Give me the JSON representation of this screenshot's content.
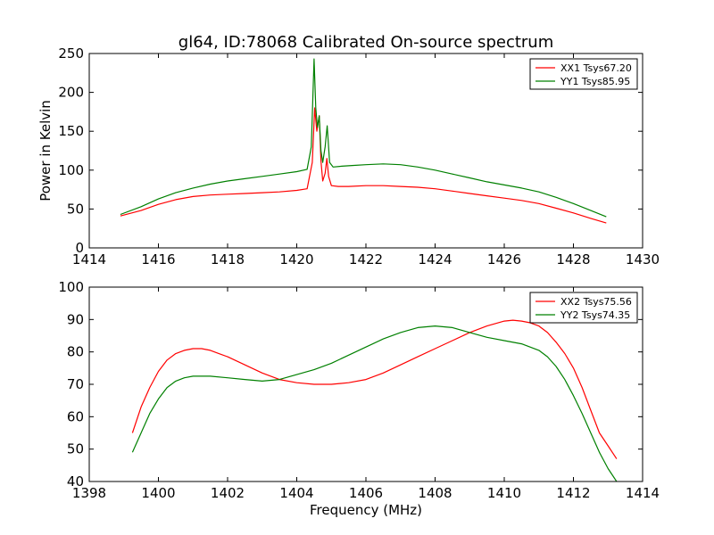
{
  "chart_data": [
    {
      "type": "line",
      "title": "gl64, ID:78068 Calibrated On-source spectrum",
      "xlabel": "",
      "ylabel": "Power in Kelvin",
      "xlim": [
        1414,
        1430
      ],
      "ylim": [
        0,
        250
      ],
      "xticks": [
        1414,
        1416,
        1418,
        1420,
        1422,
        1424,
        1426,
        1428,
        1430
      ],
      "yticks": [
        0,
        50,
        100,
        150,
        200,
        250
      ],
      "legend": "top-right",
      "grid": false,
      "series": [
        {
          "name": "XX1 Tsys67.20",
          "color": "#ff0000",
          "x": [
            1414.9,
            1415.5,
            1416.0,
            1416.5,
            1417.0,
            1417.5,
            1418.0,
            1418.5,
            1419.0,
            1419.5,
            1420.0,
            1420.3,
            1420.45,
            1420.52,
            1420.58,
            1420.65,
            1420.7,
            1420.75,
            1420.82,
            1420.87,
            1420.92,
            1421.0,
            1421.2,
            1421.5,
            1422.0,
            1422.5,
            1423.0,
            1423.5,
            1424.0,
            1424.5,
            1425.0,
            1425.5,
            1426.0,
            1426.5,
            1427.0,
            1427.5,
            1428.0,
            1428.5,
            1428.95
          ],
          "y": [
            41,
            48,
            56,
            62,
            66,
            68,
            69,
            70,
            71,
            72,
            74,
            76,
            110,
            180,
            150,
            170,
            112,
            86,
            96,
            115,
            92,
            80,
            79,
            79,
            80,
            80,
            79,
            78,
            76,
            73,
            70,
            67,
            64,
            61,
            57,
            51,
            45,
            38,
            32
          ]
        },
        {
          "name": "YY1 Tsys85.95",
          "color": "#008000",
          "x": [
            1414.9,
            1415.5,
            1416.0,
            1416.5,
            1417.0,
            1417.5,
            1418.0,
            1418.5,
            1419.0,
            1419.5,
            1420.0,
            1420.3,
            1420.42,
            1420.5,
            1420.55,
            1420.6,
            1420.65,
            1420.7,
            1420.75,
            1420.82,
            1420.88,
            1420.95,
            1421.05,
            1421.3,
            1421.6,
            1422.0,
            1422.5,
            1423.0,
            1423.5,
            1424.0,
            1424.5,
            1425.0,
            1425.5,
            1426.0,
            1426.5,
            1427.0,
            1427.5,
            1428.0,
            1428.5,
            1428.95
          ],
          "y": [
            43,
            53,
            63,
            71,
            77,
            82,
            86,
            89,
            92,
            95,
            98,
            101,
            130,
            243,
            180,
            155,
            170,
            125,
            110,
            130,
            157,
            110,
            104,
            105,
            106,
            107,
            108,
            107,
            104,
            100,
            95,
            90,
            85,
            81,
            77,
            72,
            65,
            57,
            48,
            40
          ]
        }
      ]
    },
    {
      "type": "line",
      "title": "",
      "xlabel": "Frequency (MHz)",
      "ylabel": "",
      "xlim": [
        1398,
        1414
      ],
      "ylim": [
        40,
        100
      ],
      "xticks": [
        1398,
        1400,
        1402,
        1404,
        1406,
        1408,
        1410,
        1412,
        1414
      ],
      "yticks": [
        40,
        50,
        60,
        70,
        80,
        90,
        100
      ],
      "legend": "top-right",
      "grid": false,
      "series": [
        {
          "name": "XX2 Tsys75.56",
          "color": "#ff0000",
          "x": [
            1399.25,
            1399.5,
            1399.75,
            1400.0,
            1400.25,
            1400.5,
            1400.75,
            1401.0,
            1401.25,
            1401.5,
            1401.75,
            1402.0,
            1402.5,
            1403.0,
            1403.5,
            1404.0,
            1404.5,
            1405.0,
            1405.5,
            1406.0,
            1406.5,
            1407.0,
            1407.5,
            1408.0,
            1408.5,
            1409.0,
            1409.5,
            1410.0,
            1410.25,
            1410.5,
            1410.75,
            1411.0,
            1411.25,
            1411.5,
            1411.75,
            1412.0,
            1412.25,
            1412.5,
            1412.75,
            1413.0,
            1413.25
          ],
          "y": [
            55,
            63,
            69,
            74,
            77.5,
            79.5,
            80.5,
            81,
            81,
            80.5,
            79.5,
            78.5,
            76,
            73.5,
            71.5,
            70.5,
            70,
            70,
            70.5,
            71.5,
            73.5,
            76,
            78.5,
            81,
            83.5,
            86,
            88,
            89.5,
            89.8,
            89.5,
            89,
            88,
            86,
            83,
            79.5,
            75,
            69,
            62,
            55,
            51,
            47
          ]
        },
        {
          "name": "YY2 Tsys74.35",
          "color": "#008000",
          "x": [
            1399.25,
            1399.5,
            1399.75,
            1400.0,
            1400.25,
            1400.5,
            1400.75,
            1401.0,
            1401.25,
            1401.5,
            1402.0,
            1402.5,
            1403.0,
            1403.5,
            1404.0,
            1404.5,
            1405.0,
            1405.5,
            1406.0,
            1406.5,
            1407.0,
            1407.5,
            1408.0,
            1408.5,
            1409.0,
            1409.5,
            1410.0,
            1410.5,
            1411.0,
            1411.25,
            1411.5,
            1411.75,
            1412.0,
            1412.25,
            1412.5,
            1412.75,
            1413.0,
            1413.25
          ],
          "y": [
            49,
            55,
            61,
            65.5,
            69,
            71,
            72,
            72.5,
            72.5,
            72.5,
            72,
            71.5,
            71,
            71.5,
            73,
            74.5,
            76.5,
            79,
            81.5,
            84,
            86,
            87.5,
            88,
            87.5,
            86,
            84.5,
            83.5,
            82.5,
            80.5,
            78.5,
            75.5,
            71.5,
            66.5,
            61,
            55,
            49,
            44,
            40
          ]
        }
      ]
    }
  ]
}
